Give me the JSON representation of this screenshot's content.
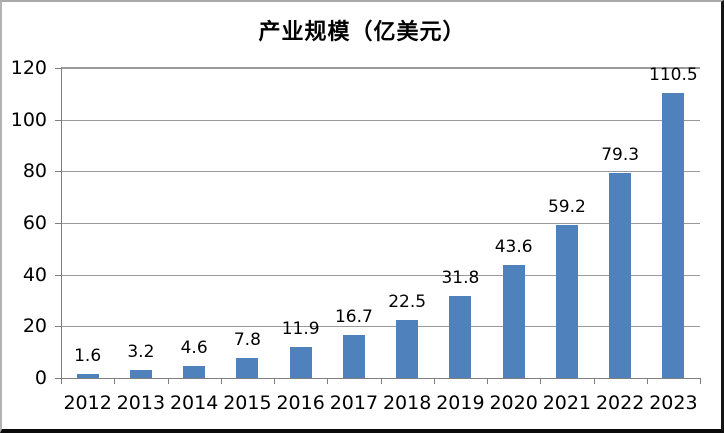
{
  "chart_data": {
    "type": "bar",
    "title": "产业规模（亿美元）",
    "categories": [
      "2012",
      "2013",
      "2014",
      "2015",
      "2016",
      "2017",
      "2018",
      "2019",
      "2020",
      "2021",
      "2022",
      "2023"
    ],
    "values": [
      1.6,
      3.2,
      4.6,
      7.8,
      11.9,
      16.7,
      22.5,
      31.8,
      43.6,
      59.2,
      79.3,
      110.5
    ],
    "data_labels": [
      "1.6",
      "3.2",
      "4.6",
      "7.8",
      "11.9",
      "16.7",
      "22.5",
      "31.8",
      "43.6",
      "59.2",
      "79.3",
      "110.5"
    ],
    "xlabel": "",
    "ylabel": "",
    "ylim": [
      0,
      120
    ],
    "yticks": [
      0,
      20,
      40,
      60,
      80,
      100,
      120
    ],
    "grid": true,
    "legend_position": "none",
    "bar_color": "#4F81BD",
    "gridline_color": "#9a9a9a",
    "axis_color": "#7f7f7f",
    "title_color": "#000000",
    "label_color": "#000000"
  }
}
